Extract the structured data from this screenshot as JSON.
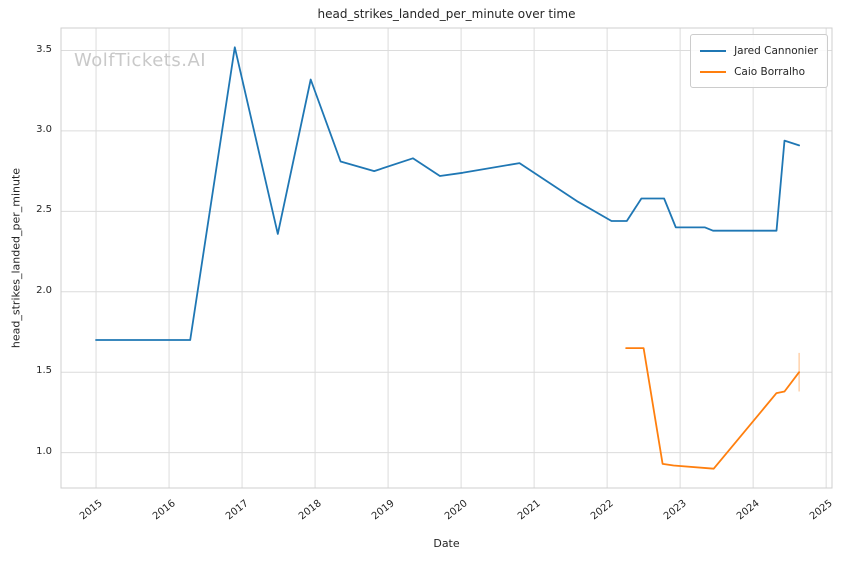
{
  "window": {
    "title": "head_strikes_landed_per_minute over time",
    "watermark": "WolfTickets.AI"
  },
  "chart_data": {
    "type": "line",
    "title": "head_strikes_landed_per_minute over time",
    "xlabel": "Date",
    "ylabel": "head_strikes_landed_per_minute",
    "xlim": [
      2014.52,
      2025.08
    ],
    "ylim": [
      0.78,
      3.64
    ],
    "x_tick_labels": [
      "2015",
      "2016",
      "2017",
      "2018",
      "2019",
      "2020",
      "2021",
      "2022",
      "2023",
      "2024",
      "2025"
    ],
    "y_tick_labels": [
      "1.0",
      "1.5",
      "2.0",
      "2.5",
      "3.0",
      "3.5"
    ],
    "grid": true,
    "grid_color": "#dcdcdc",
    "frame_color": "#cfcfcf",
    "legend_position": "upper right",
    "series": [
      {
        "name": "Jared Cannonier",
        "color": "#1f77b4",
        "points": [
          [
            2015.0,
            1.7
          ],
          [
            2016.29,
            1.7
          ],
          [
            2016.9,
            3.52
          ],
          [
            2017.49,
            2.36
          ],
          [
            2017.94,
            3.32
          ],
          [
            2018.35,
            2.81
          ],
          [
            2018.81,
            2.75
          ],
          [
            2019.34,
            2.83
          ],
          [
            2019.71,
            2.72
          ],
          [
            2020.02,
            2.74
          ],
          [
            2020.8,
            2.8
          ],
          [
            2021.6,
            2.56
          ],
          [
            2022.06,
            2.44
          ],
          [
            2022.27,
            2.44
          ],
          [
            2022.47,
            2.58
          ],
          [
            2022.78,
            2.58
          ],
          [
            2022.94,
            2.4
          ],
          [
            2023.34,
            2.4
          ],
          [
            2023.45,
            2.38
          ],
          [
            2024.32,
            2.38
          ],
          [
            2024.43,
            2.94
          ],
          [
            2024.63,
            2.91
          ]
        ]
      },
      {
        "name": "Caio Borralho",
        "color": "#ff7f0e",
        "points": [
          [
            2022.26,
            1.65
          ],
          [
            2022.5,
            1.65
          ],
          [
            2022.76,
            0.93
          ],
          [
            2022.91,
            0.92
          ],
          [
            2023.46,
            0.9
          ],
          [
            2024.32,
            1.37
          ],
          [
            2024.43,
            1.38
          ],
          [
            2024.63,
            1.5
          ]
        ],
        "endpoint_marker": {
          "x": 2024.63,
          "y_low": 1.38,
          "y_high": 1.62,
          "opacity": 0.35
        }
      }
    ]
  }
}
